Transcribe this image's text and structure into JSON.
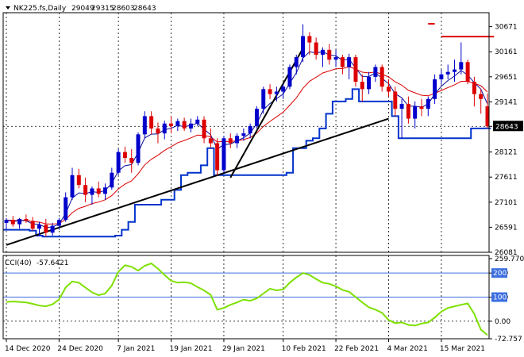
{
  "header": {
    "symbol": "NK225.fs,Daily",
    "open": "29049",
    "high": "29315",
    "low": "28603",
    "close": "28643"
  },
  "price_tag": "28643",
  "indicator": {
    "name": "CCI(40)",
    "value": "-57.6421"
  },
  "colors": {
    "bull": "#0000cc",
    "bear": "#dd0000",
    "fast_ma": "#0b0b9a",
    "slow_ma": "#dd0000",
    "price_channel": "#0033cc",
    "trendline": "#000000",
    "cci": "#7ee000",
    "level": "#3c6ee0"
  },
  "chart_data": [
    {
      "type": "candlestick",
      "title": "NK225.fs,Daily",
      "ylim": [
        26081,
        30891
      ],
      "y_ticks": [
        "30671",
        "30161",
        "29651",
        "29141",
        "28643",
        "28121",
        "27611",
        "27101",
        "26591",
        "26081"
      ],
      "y_tick_values": [
        30671,
        30161,
        29651,
        29141,
        28643,
        28121,
        27611,
        27101,
        26591,
        26081
      ],
      "x_tick_labels": [
        "14 Dec 2020",
        "24 Dec 2020",
        "7 Jan 2021",
        "19 Jan 2021",
        "29 Jan 2021",
        "10 Feb 2021",
        "22 Feb 2021",
        "4 Mar 2021",
        "15 Mar 2021"
      ],
      "x_tick_index": [
        0,
        8,
        17,
        25,
        33,
        42,
        50,
        58,
        66
      ],
      "candles": [
        [
          26680,
          26780,
          26540,
          26740
        ],
        [
          26740,
          26820,
          26600,
          26650
        ],
        [
          26650,
          26780,
          26560,
          26760
        ],
        [
          26760,
          26850,
          26680,
          26720
        ],
        [
          26720,
          26800,
          26520,
          26560
        ],
        [
          26560,
          26700,
          26420,
          26640
        ],
        [
          26640,
          26760,
          26400,
          26480
        ],
        [
          26480,
          26680,
          26420,
          26620
        ],
        [
          26620,
          26780,
          26540,
          26740
        ],
        [
          26740,
          27300,
          26700,
          27200
        ],
        [
          27200,
          27800,
          27150,
          27650
        ],
        [
          27650,
          27780,
          27380,
          27450
        ],
        [
          27450,
          27600,
          27100,
          27250
        ],
        [
          27250,
          27420,
          27050,
          27380
        ],
        [
          27380,
          27520,
          27200,
          27270
        ],
        [
          27270,
          27480,
          27150,
          27400
        ],
        [
          27400,
          27800,
          27350,
          27700
        ],
        [
          27700,
          28180,
          27650,
          28120
        ],
        [
          28120,
          28230,
          27900,
          28000
        ],
        [
          28000,
          28180,
          27700,
          27900
        ],
        [
          27900,
          28520,
          27850,
          28480
        ],
        [
          28480,
          28950,
          28400,
          28850
        ],
        [
          28850,
          28950,
          28480,
          28600
        ],
        [
          28600,
          28720,
          28300,
          28500
        ],
        [
          28500,
          28760,
          28380,
          28700
        ],
        [
          28700,
          28850,
          28500,
          28650
        ],
        [
          28650,
          28800,
          28550,
          28750
        ],
        [
          28750,
          28820,
          28550,
          28600
        ],
        [
          28600,
          28800,
          28520,
          28700
        ],
        [
          28700,
          28850,
          28650,
          28780
        ],
        [
          28780,
          28850,
          28300,
          28400
        ],
        [
          28400,
          28600,
          28200,
          28300
        ],
        [
          28300,
          28400,
          27650,
          27750
        ],
        [
          27750,
          28450,
          27700,
          28400
        ],
        [
          28400,
          28500,
          28200,
          28300
        ],
        [
          28300,
          28500,
          28200,
          28450
        ],
        [
          28450,
          28600,
          28350,
          28500
        ],
        [
          28500,
          28700,
          28400,
          28650
        ],
        [
          28650,
          29050,
          28600,
          29000
        ],
        [
          29000,
          29450,
          28900,
          29400
        ],
        [
          29400,
          29500,
          29200,
          29300
        ],
        [
          29300,
          29450,
          29150,
          29350
        ],
        [
          29350,
          29500,
          29200,
          29450
        ],
        [
          29450,
          29900,
          29400,
          29850
        ],
        [
          29850,
          30100,
          29700,
          30050
        ],
        [
          30050,
          30720,
          29950,
          30480
        ],
        [
          30480,
          30560,
          30100,
          30350
        ],
        [
          30350,
          30450,
          30000,
          30100
        ],
        [
          30100,
          30250,
          29850,
          30200
        ],
        [
          30200,
          30320,
          29900,
          30000
        ],
        [
          30000,
          30200,
          29850,
          30050
        ],
        [
          30050,
          30100,
          29700,
          29850
        ],
        [
          29850,
          30120,
          29600,
          30050
        ],
        [
          30050,
          30100,
          29450,
          29550
        ],
        [
          29550,
          29700,
          29150,
          29400
        ],
        [
          29400,
          29750,
          29300,
          29650
        ],
        [
          29650,
          29900,
          29550,
          29850
        ],
        [
          29850,
          29900,
          29350,
          29450
        ],
        [
          29450,
          29600,
          29250,
          29350
        ],
        [
          29350,
          29450,
          28850,
          29000
        ],
        [
          29000,
          29200,
          28400,
          29100
        ],
        [
          29100,
          29250,
          28700,
          28800
        ],
        [
          28800,
          29150,
          28600,
          29050
        ],
        [
          29050,
          29200,
          28850,
          29000
        ],
        [
          29000,
          29250,
          28850,
          29200
        ],
        [
          29200,
          29700,
          29100,
          29600
        ],
        [
          29600,
          29800,
          29500,
          29700
        ],
        [
          29700,
          29900,
          29600,
          29750
        ],
        [
          29750,
          30000,
          29550,
          29800
        ],
        [
          29800,
          30350,
          29700,
          29950
        ],
        [
          29950,
          30000,
          29500,
          29550
        ],
        [
          29550,
          29650,
          29050,
          29300
        ],
        [
          29300,
          29400,
          28900,
          29200
        ],
        [
          29050,
          29315,
          28603,
          28643
        ]
      ],
      "horizontal_segments": [
        {
          "from_index": 66,
          "to_index": 74,
          "value": 30470,
          "color": "#dd0000"
        },
        {
          "from_index": 64,
          "to_index": 65,
          "value": 30730,
          "color": "#dd0000"
        }
      ],
      "trendlines": [
        {
          "from": [
            0,
            26230
          ],
          "to": [
            58,
            28800
          ]
        },
        {
          "from": [
            34,
            27600
          ],
          "to": [
            45,
            30230
          ]
        }
      ]
    },
    {
      "type": "line",
      "title": "CCI(40)",
      "ylim": [
        -72.757,
        259.7707
      ],
      "y_ticks": [
        "259.7707",
        "200",
        "100",
        "0.00",
        "-72.757"
      ],
      "y_tick_values": [
        259.7707,
        200,
        100,
        0,
        -72.757
      ],
      "levels": [
        200,
        100
      ],
      "values": [
        80,
        82,
        80,
        78,
        72,
        65,
        62,
        70,
        90,
        140,
        165,
        160,
        140,
        120,
        108,
        115,
        148,
        205,
        232,
        226,
        210,
        230,
        240,
        218,
        192,
        168,
        160,
        162,
        158,
        142,
        128,
        110,
        48,
        55,
        68,
        78,
        90,
        85,
        95,
        115,
        135,
        128,
        132,
        160,
        182,
        200,
        192,
        175,
        160,
        155,
        145,
        130,
        122,
        100,
        78,
        58,
        48,
        35,
        5,
        -8,
        -5,
        -15,
        -18,
        -10,
        -5,
        15,
        40,
        55,
        62,
        68,
        74,
        30,
        -35,
        -57.6
      ]
    }
  ]
}
